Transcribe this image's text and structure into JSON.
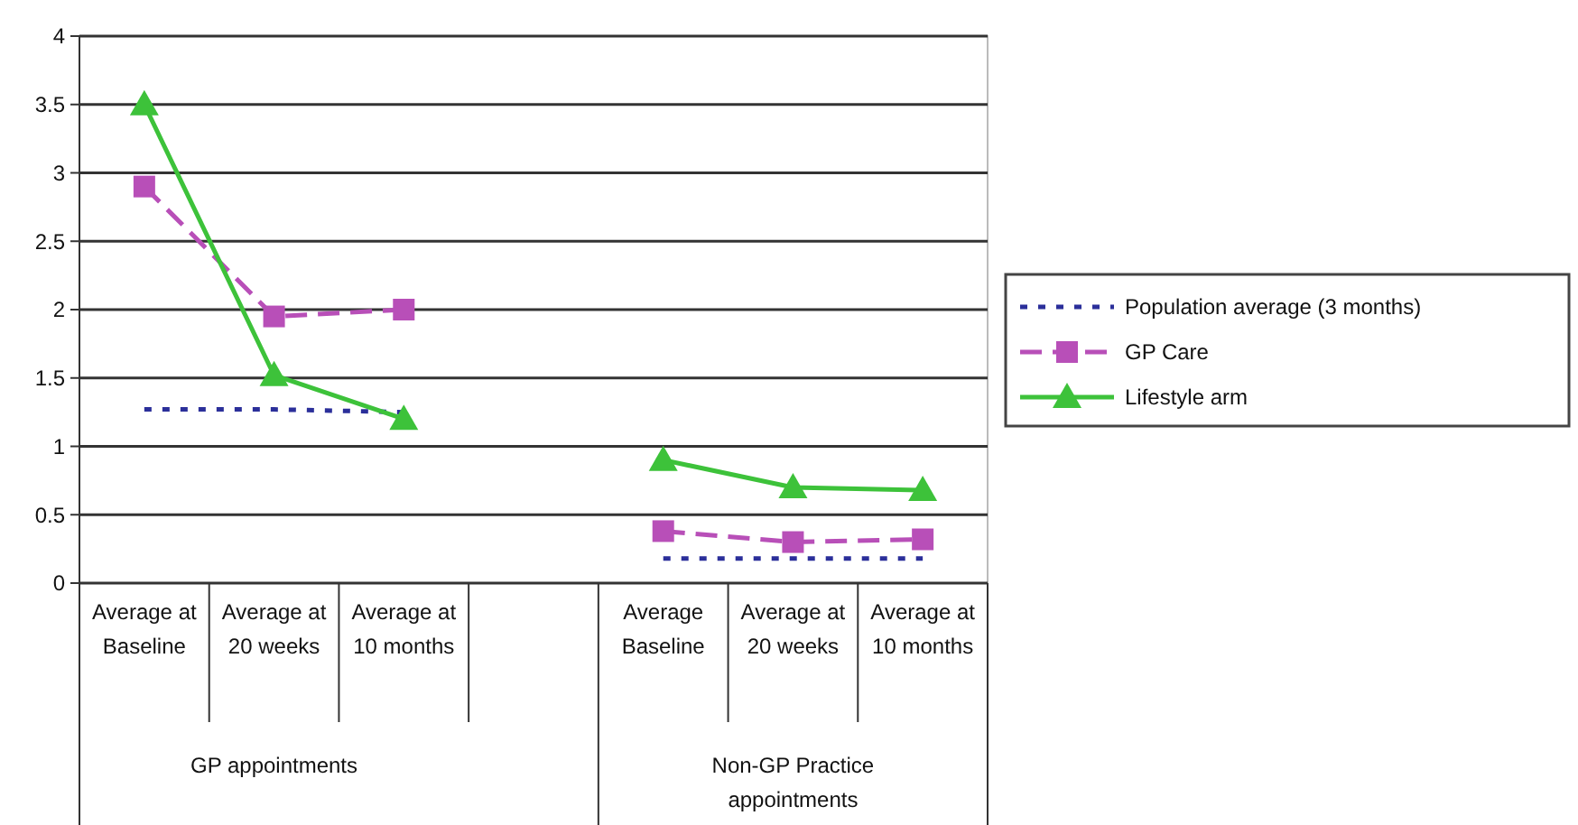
{
  "chart_data": {
    "type": "line",
    "categories": [
      "Average at Baseline",
      "Average at 20 weeks",
      "Average at 10 months",
      null,
      "Average Baseline",
      "Average at 20 weeks",
      "Average at 10 months"
    ],
    "series": [
      {
        "name": "Population average (3 months)",
        "color": "#2b2f9a",
        "marker": "none",
        "line_style": "dotted",
        "values": [
          1.27,
          1.27,
          1.25,
          null,
          0.18,
          0.18,
          0.18
        ]
      },
      {
        "name": "GP Care",
        "color": "#b84fb8",
        "marker": "square",
        "line_style": "dashed",
        "values": [
          2.9,
          1.95,
          2.0,
          null,
          0.38,
          0.3,
          0.32
        ]
      },
      {
        "name": "Lifestyle arm",
        "color": "#3dc23a",
        "marker": "triangle",
        "line_style": "solid",
        "values": [
          3.5,
          1.52,
          1.2,
          null,
          0.9,
          0.7,
          0.68
        ]
      }
    ],
    "ylim": [
      0,
      4
    ],
    "yticks": [
      0,
      0.5,
      1,
      1.5,
      2,
      2.5,
      3,
      3.5,
      4
    ],
    "grid": "y",
    "legend": "right",
    "annotations": [
      "GP appointments",
      "Non-GP Practice appointments"
    ]
  }
}
